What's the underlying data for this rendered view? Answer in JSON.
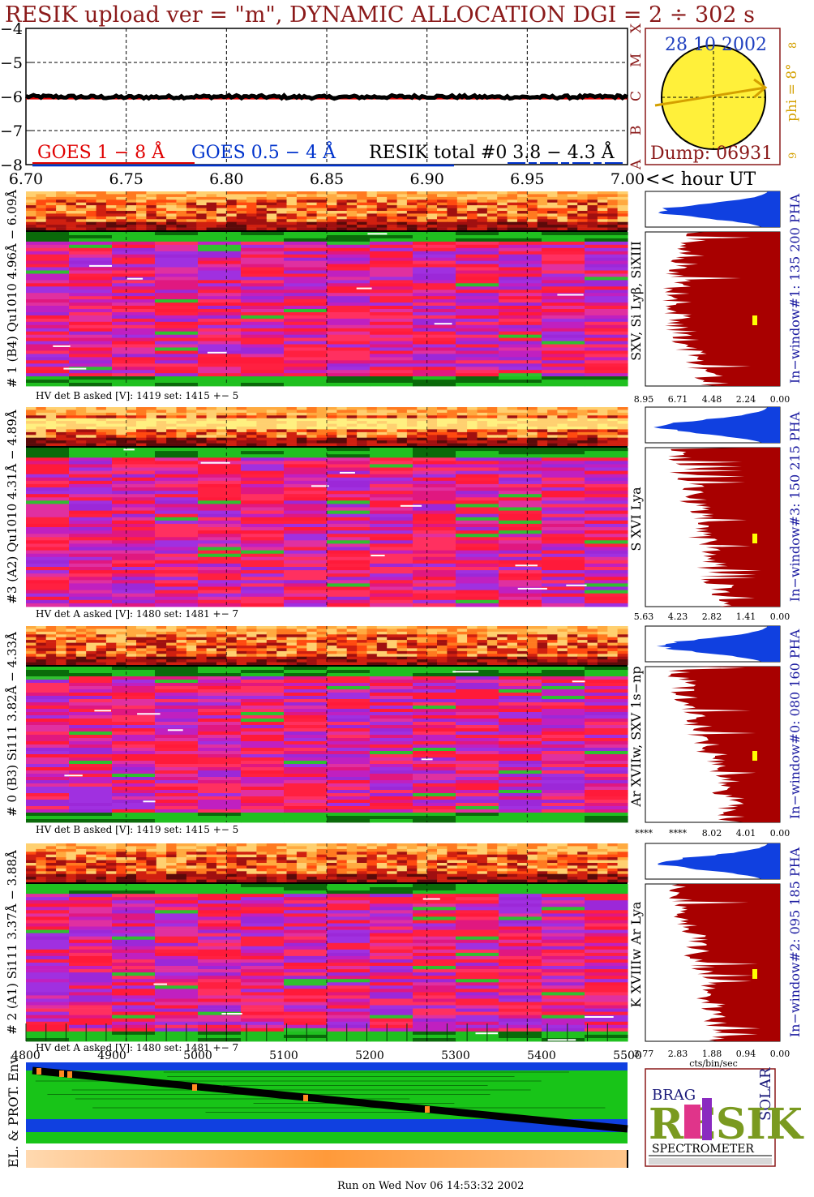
{
  "title": "RESIK upload ver = \"m\", DYNAMIC ALLOCATION  DGI =   2 ÷ 302 s",
  "colors": {
    "title": "#8b1a1a",
    "goes_red": "#e00000",
    "goes_blue": "#0033cc",
    "resik_black": "#000000",
    "date_blue": "#1f3fbf",
    "phi_gold": "#d4a000",
    "sun_yellow": "#fff03a",
    "hist_blue": "#1040e0",
    "hist_dark_red": "#a80000"
  },
  "top_chart": {
    "y_ticks": [
      "−4",
      "−5",
      "−6",
      "−7",
      "−8"
    ],
    "x_ticks": [
      "6.70",
      "6.75",
      "6.80",
      "6.85",
      "6.90",
      "6.95",
      "7.00"
    ],
    "x_unit_label": "<< hour UT",
    "goes_class_letters": [
      "A",
      "B",
      "C",
      "M",
      "X"
    ],
    "legend": {
      "goes_long": "GOES 1 − 8 Å",
      "goes_short": "GOES 0.5 − 4 Å",
      "resik_total": "RESIK total #0  3.8 − 4.3 Å"
    }
  },
  "sun_panel": {
    "date": "28 10 2002",
    "dump": "Dump: 06931",
    "phi": "phi =  8° ",
    "side_numbers": [
      "8",
      "9"
    ]
  },
  "channels": [
    {
      "left_label": "# 1 (B4) Qu1010 4.96Å − 6.09Å",
      "hv": "HV det B asked [V]:  1419 set:  1415 +−   5",
      "lines": "SXV, Si Lyβ, SiXIII",
      "window": "In−window#1:  135 200 PHA",
      "ticks": [
        "8.95",
        "6.71",
        "4.48",
        "2.24",
        "0.00"
      ]
    },
    {
      "left_label": "#3 (A2) Qu1010  4.31Å − 4.89Å",
      "hv": "HV det A asked [V]:  1480 set:  1481 +−   7",
      "lines": "S XVI Lya",
      "window": "In−window#3:  150 215 PHA",
      "ticks": [
        "5.63",
        "4.23",
        "2.82",
        "1.41",
        "0.00"
      ]
    },
    {
      "left_label": "# 0 (B3) Si111  3.82Å − 4.33Å",
      "hv": "HV det B asked [V]:  1419 set:  1415 +−   5",
      "lines": "Ar XVIIw, SXV 1s−np",
      "window": "In−window#0:  080 160 PHA",
      "ticks": [
        "****",
        "****",
        "8.02",
        "4.01",
        "0.00"
      ]
    },
    {
      "left_label": "# 2 (A1) Si111  3.37Å − 3.88Å",
      "hv": "HV det A asked [V]:  1480 set:  1481 +−   7",
      "lines": "K XVIIIw  Ar Lya",
      "window": "In−window#2:  095 185 PHA",
      "ticks": [
        "3.77",
        "2.83",
        "1.88",
        "0.94",
        "0.00"
      ],
      "unit": "cts/bin/sec"
    }
  ],
  "bottom_panel": {
    "x_ticks": [
      "4800",
      "4900",
      "5000",
      "5100",
      "5200",
      "5300",
      "5400",
      "5500"
    ],
    "left_label": "EL. & PROT. Env"
  },
  "logo": {
    "letters_small": "BRAG",
    "solar": "SOLAR",
    "main": "RESIK",
    "bottom": "SPECTROMETER"
  },
  "footer": "Run on Wed Nov 06 14:53:32 2002",
  "chart_data": {
    "type": "line",
    "x": [
      6.7,
      6.75,
      6.8,
      6.85,
      6.9,
      6.95,
      7.0
    ],
    "xlabel": "hour UT",
    "ylim": [
      -8,
      -4
    ],
    "series": [
      {
        "name": "GOES 1 − 8 Å",
        "values": [
          -6.05,
          -6.05,
          -6.05,
          -6.05,
          -6.05,
          -6.05,
          -6.05
        ]
      },
      {
        "name": "RESIK total #0  3.8 − 4.3 Å",
        "values": [
          -6.0,
          -6.02,
          -6.0,
          -6.02,
          -6.0,
          -6.02,
          -6.0
        ]
      }
    ]
  }
}
